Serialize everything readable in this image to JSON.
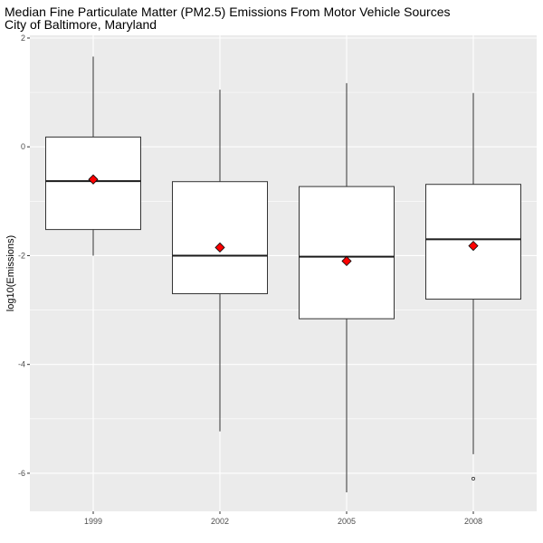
{
  "chart_data": {
    "type": "box",
    "title": "Median Fine Particulate Matter (PM2.5) Emissions From Motor Vehicle Sources",
    "subtitle": "City of Baltimore, Maryland",
    "xlabel": "",
    "ylabel": "log10(Emissions)",
    "categories": [
      "1999",
      "2002",
      "2005",
      "2008"
    ],
    "y_ticks": [
      2,
      0,
      -2,
      -4,
      -6
    ],
    "y_tick_labels": [
      "2",
      "0",
      "-2",
      "-4",
      "-6"
    ],
    "ylim": [
      -6.7,
      2.05
    ],
    "grid": true,
    "boxes": [
      {
        "category": "1999",
        "whisker_low": -2.0,
        "q1": -1.52,
        "median": -0.63,
        "q3": 0.18,
        "whisker_high": 1.66,
        "mean": -0.6,
        "outliers": []
      },
      {
        "category": "2002",
        "whisker_low": -5.23,
        "q1": -2.7,
        "median": -2.0,
        "q3": -0.64,
        "whisker_high": 1.05,
        "mean": -1.85,
        "outliers": []
      },
      {
        "category": "2005",
        "whisker_low": -6.35,
        "q1": -3.16,
        "median": -2.02,
        "q3": -0.73,
        "whisker_high": 1.17,
        "mean": -2.1,
        "outliers": []
      },
      {
        "category": "2008",
        "whisker_low": -5.65,
        "q1": -2.8,
        "median": -1.7,
        "q3": -0.69,
        "whisker_high": 0.99,
        "mean": -1.82,
        "outliers": [
          -6.1
        ]
      }
    ],
    "colors": {
      "panel_background": "#ebebeb",
      "grid_major": "#ffffff",
      "box_fill": "#ffffff",
      "box_line": "#333333",
      "median_line": "#1a1a1a",
      "mean_marker": "#ff0000"
    }
  }
}
